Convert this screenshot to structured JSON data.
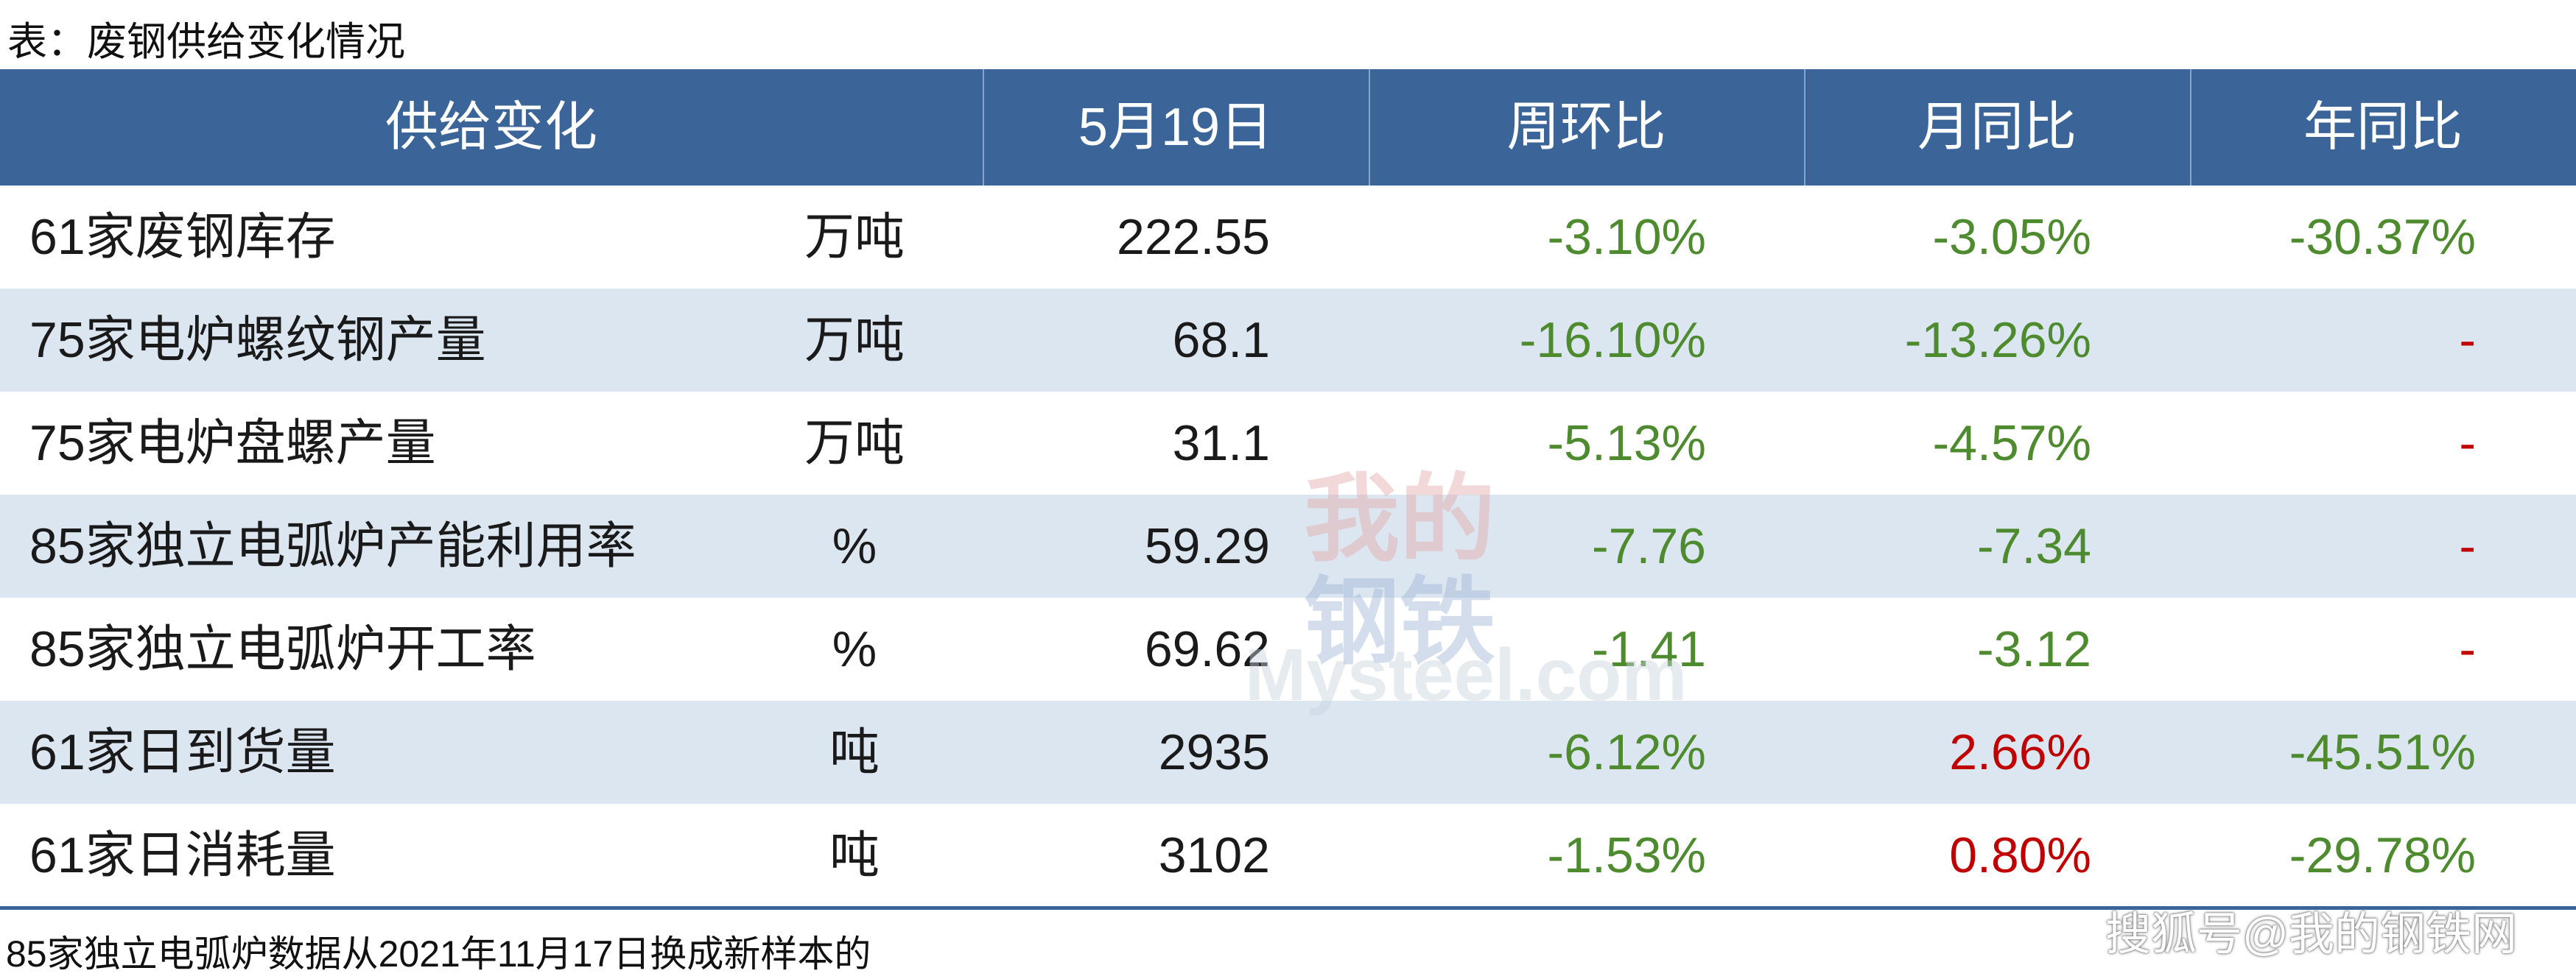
{
  "title": "表：废钢供给变化情况",
  "table": {
    "header": [
      "供给变化",
      "5月19日",
      "周环比",
      "月同比",
      "年同比"
    ],
    "rows": [
      [
        "61家废钢库存",
        "万吨",
        "222.55",
        "-3.10%",
        "-3.05%",
        "-30.37%"
      ],
      [
        "75家电炉螺纹钢产量",
        "万吨",
        "68.1",
        "-16.10%",
        "-13.26%",
        "-"
      ],
      [
        "75家电炉盘螺产量",
        "万吨",
        "31.1",
        "-5.13%",
        "-4.57%",
        "-"
      ],
      [
        "85家独立电弧炉产能利用率",
        "%",
        "59.29",
        "-7.76",
        "-7.34",
        "-"
      ],
      [
        "85家独立电弧炉开工率",
        "%",
        "69.62",
        "-1.41",
        "-3.12",
        "-"
      ],
      [
        "61家日到货量",
        "吨",
        "2935",
        "-6.12%",
        "2.66%",
        "-45.51%"
      ],
      [
        "61家日消耗量",
        "吨",
        "3102",
        "-1.53%",
        "0.80%",
        "-29.78%"
      ]
    ],
    "colors": [
      [
        "#1a1a1a",
        "#1a1a1a",
        "#1a1a1a",
        "#4e8a2e",
        "#4e8a2e",
        "#4e8a2e"
      ],
      [
        "#1a1a1a",
        "#1a1a1a",
        "#1a1a1a",
        "#4e8a2e",
        "#4e8a2e",
        "#c00000"
      ],
      [
        "#1a1a1a",
        "#1a1a1a",
        "#1a1a1a",
        "#4e8a2e",
        "#4e8a2e",
        "#c00000"
      ],
      [
        "#1a1a1a",
        "#1a1a1a",
        "#1a1a1a",
        "#4e8a2e",
        "#4e8a2e",
        "#c00000"
      ],
      [
        "#1a1a1a",
        "#1a1a1a",
        "#1a1a1a",
        "#4e8a2e",
        "#4e8a2e",
        "#c00000"
      ],
      [
        "#1a1a1a",
        "#1a1a1a",
        "#1a1a1a",
        "#4e8a2e",
        "#c00000",
        "#4e8a2e"
      ],
      [
        "#1a1a1a",
        "#1a1a1a",
        "#1a1a1a",
        "#4e8a2e",
        "#c00000",
        "#4e8a2e"
      ]
    ]
  },
  "footnote": "85家独立电弧炉数据从2021年11月17日换成新样本的",
  "watermark": [
    "我的",
    "钢铁",
    "Mysteel.com"
  ],
  "source": "搜狐号@我的钢铁网"
}
